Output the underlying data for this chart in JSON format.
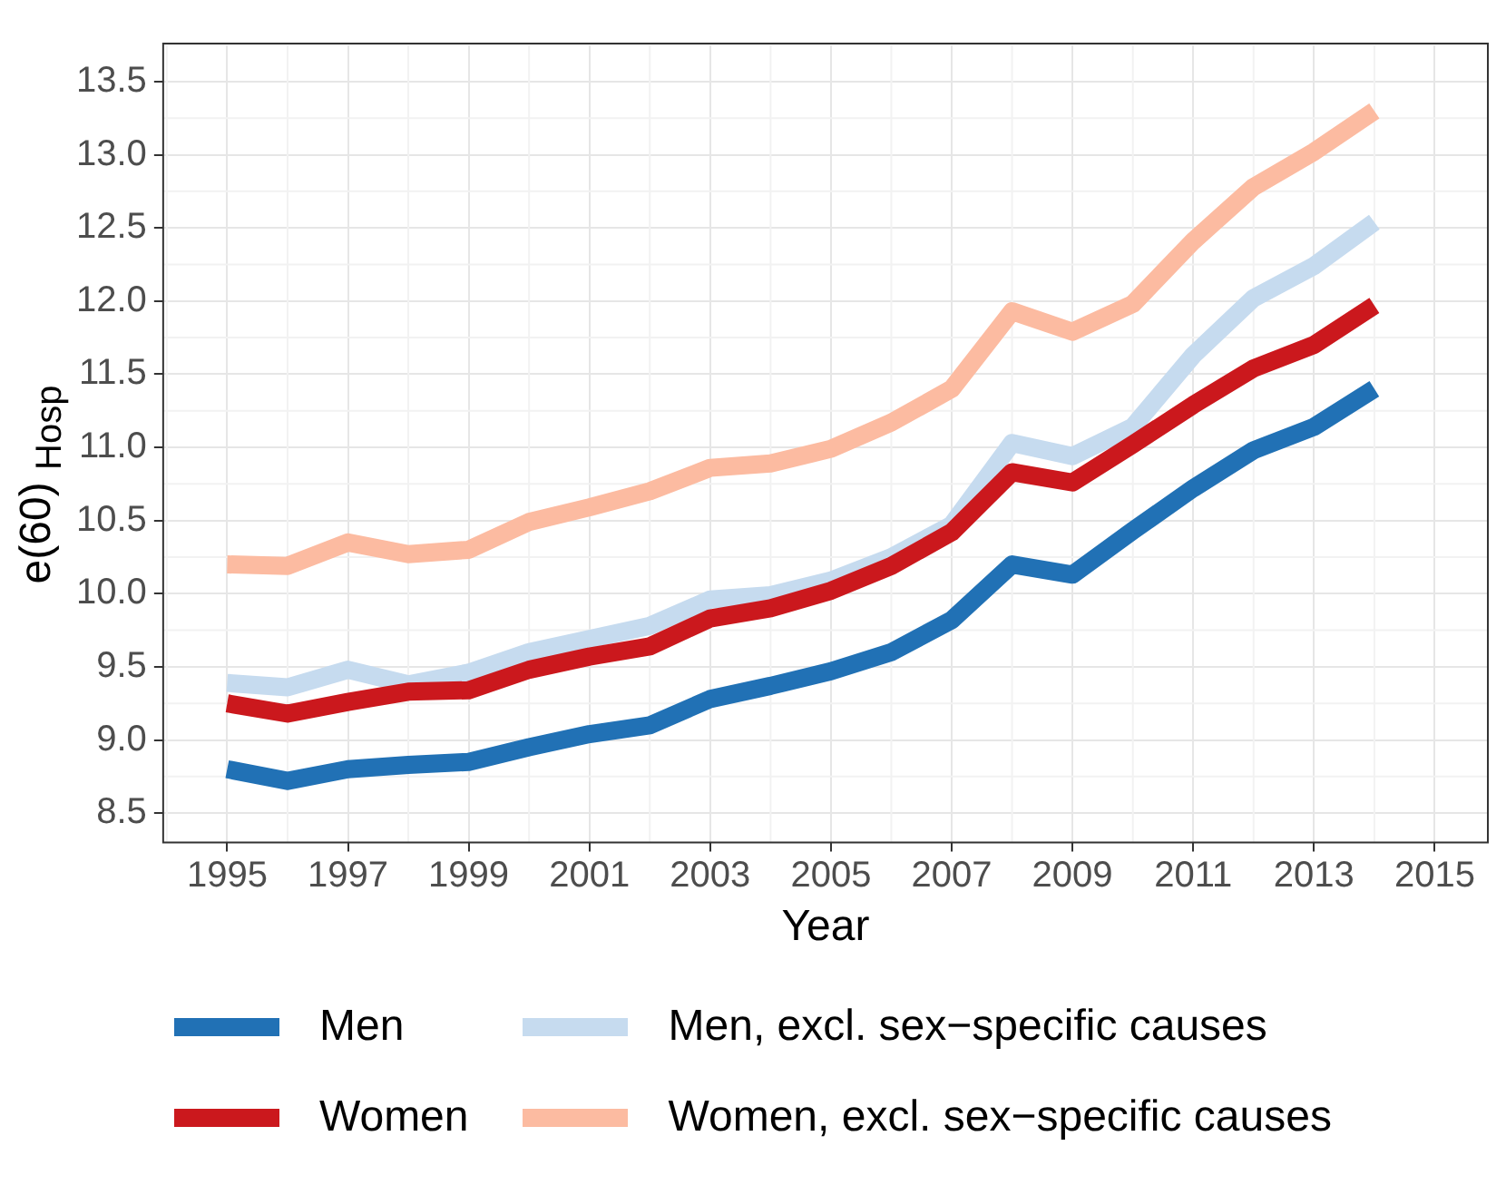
{
  "chart_data": {
    "type": "line",
    "xlabel": "Year",
    "ylabel": "e(60) $_{Hosp}$",
    "x": [
      1995,
      1996,
      1997,
      1998,
      1999,
      2000,
      2001,
      2002,
      2003,
      2004,
      2005,
      2006,
      2007,
      2008,
      2009,
      2010,
      2011,
      2012,
      2013,
      2014
    ],
    "series": [
      {
        "name": "Men",
        "color": "#2171b5",
        "values": [
          8.8,
          8.72,
          8.8,
          8.83,
          8.85,
          8.95,
          9.04,
          9.1,
          9.28,
          9.37,
          9.47,
          9.6,
          9.82,
          10.2,
          10.13,
          10.43,
          10.72,
          10.98,
          11.14,
          11.4
        ]
      },
      {
        "name": "Women",
        "color": "#cb181d",
        "values": [
          9.25,
          9.18,
          9.26,
          9.33,
          9.34,
          9.48,
          9.57,
          9.64,
          9.83,
          9.9,
          10.02,
          10.19,
          10.42,
          10.83,
          10.76,
          11.02,
          11.29,
          11.54,
          11.7,
          11.97
        ]
      },
      {
        "name": "Men, excl. sex−specific causes",
        "color": "#c6dbef",
        "values": [
          9.39,
          9.36,
          9.48,
          9.38,
          9.46,
          9.6,
          9.69,
          9.78,
          9.96,
          9.99,
          10.09,
          10.25,
          10.47,
          11.03,
          10.94,
          11.14,
          11.63,
          12.02,
          12.24,
          12.54
        ]
      },
      {
        "name": "Women, excl. sex−specific causes",
        "color": "#fcbba1",
        "values": [
          10.2,
          10.19,
          10.35,
          10.27,
          10.3,
          10.49,
          10.59,
          10.7,
          10.86,
          10.89,
          10.99,
          11.17,
          11.4,
          11.93,
          11.79,
          11.98,
          12.41,
          12.78,
          13.02,
          13.3
        ]
      }
    ],
    "xlim": [
      1993.94,
      2015.88
    ],
    "ylim": [
      8.3,
      13.76
    ],
    "xticks": [
      1995,
      1997,
      1999,
      2001,
      2003,
      2005,
      2007,
      2009,
      2011,
      2013,
      2015
    ],
    "yticks": [
      8.5,
      {
        "value": 9,
        "label": "9.0"
      },
      9.5,
      {
        "value": 10,
        "label": "10.0"
      },
      10.5,
      {
        "value": 11,
        "label": "11.0"
      },
      11.5,
      {
        "value": 12,
        "label": "12.0"
      },
      12.5,
      {
        "value": 13,
        "label": "13.0"
      },
      13.5
    ],
    "grid": true,
    "legend": "bottom",
    "marker": "none",
    "line_style": "solid"
  }
}
